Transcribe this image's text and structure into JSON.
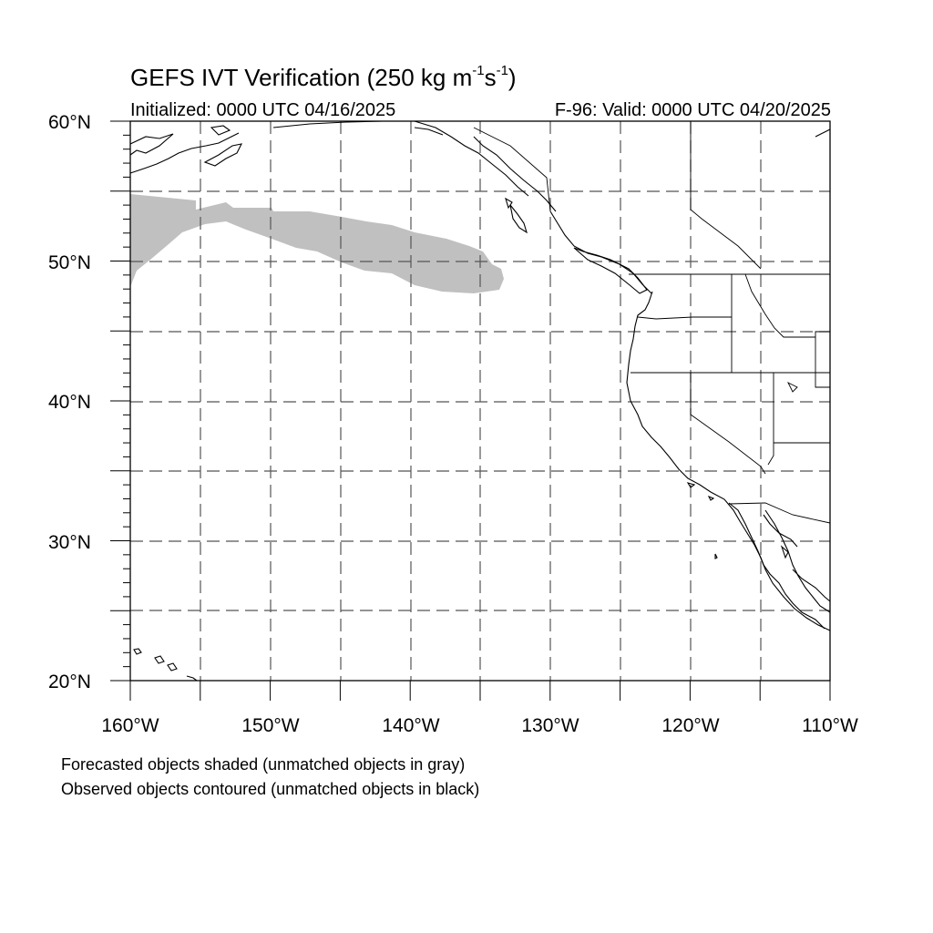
{
  "title": {
    "main": "GEFS IVT Verification (250 kg m",
    "exp1": "-1",
    "mid": "s",
    "exp2": "-1",
    "close": ")"
  },
  "initialized": "Initialized: 0000 UTC 04/16/2025",
  "valid": "F-96: Valid: 0000 UTC 04/20/2025",
  "axes": {
    "lat_labels": [
      "60°N",
      "50°N",
      "40°N",
      "30°N",
      "20°N"
    ],
    "lon_labels": [
      "160°W",
      "150°W",
      "140°W",
      "130°W",
      "120°W",
      "110°W"
    ],
    "lat_range": [
      20,
      60
    ],
    "lon_range": [
      -160,
      -110
    ],
    "gridlines": "dashed every 5°"
  },
  "notes": [
    "Forecasted objects shaded (unmatched objects in gray)",
    "Observed objects contoured (unmatched objects in black)"
  ],
  "colors": {
    "forecast_object": "#c0c0c0",
    "coastline": "#000000"
  }
}
